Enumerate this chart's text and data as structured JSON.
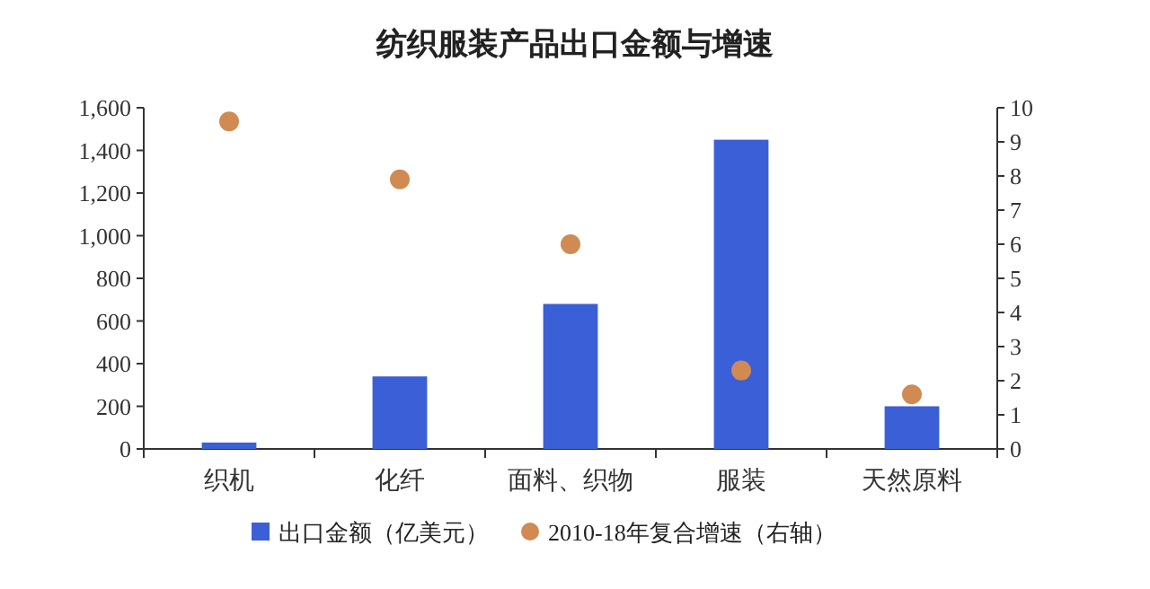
{
  "chart_data": {
    "type": "bar",
    "title": "纺织服装产品出口金额与增速",
    "categories": [
      "织机",
      "化纤",
      "面料、织物",
      "服装",
      "天然原料"
    ],
    "series": [
      {
        "name": "出口金额（亿美元）",
        "color": "#3a5fd6",
        "values": [
          30,
          340,
          680,
          1450,
          200
        ]
      },
      {
        "name": "2010-18年复合增速（右轴）",
        "type": "scatter",
        "axis": "y2",
        "color": "#d08a52",
        "marker": "circle",
        "values": [
          9.6,
          7.9,
          6.0,
          2.3,
          1.6
        ]
      }
    ],
    "ylim": [
      0,
      1600
    ],
    "yticks": [
      {
        "value": 0,
        "label": "0"
      },
      {
        "value": 200,
        "label": "200"
      },
      {
        "value": 400,
        "label": "400"
      },
      {
        "value": 600,
        "label": "600"
      },
      {
        "value": 800,
        "label": "800"
      },
      {
        "value": 1000,
        "label": "1,000"
      },
      {
        "value": 1200,
        "label": "1,200"
      },
      {
        "value": 1400,
        "label": "1,400"
      },
      {
        "value": 1600,
        "label": "1,600"
      }
    ],
    "y2lim": [
      0,
      10
    ],
    "y2ticks": [
      0,
      1,
      2,
      3,
      4,
      5,
      6,
      7,
      8,
      9,
      10
    ],
    "legend": "bottom",
    "grid": false
  }
}
